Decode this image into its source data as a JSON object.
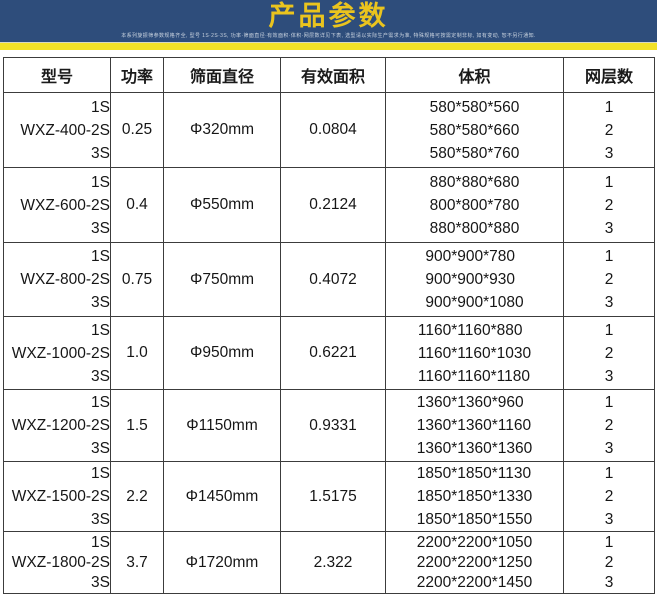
{
  "banner": {
    "title": "产品参数",
    "subtitle": "本系列旋振筛参数规格齐全, 型号 1S·2S·3S, 功率·筛面直径·有效面积·体积·网层数详见下表, 选型请以实际生产需求为准, 特殊规格可按需定制非标, 如有变动, 恕不另行通知.",
    "bg_color": "#2e4d7b",
    "title_color": "#eac41e",
    "stripe_color": "#f2e126"
  },
  "table": {
    "headers": [
      "型号",
      "功率",
      "筛面直径",
      "有效面积",
      "体积",
      "网层数"
    ],
    "rows": [
      {
        "model_lines": [
          "1S",
          "WXZ-400-2S",
          "3S"
        ],
        "power": "0.25",
        "diameter": "Φ320mm",
        "area": "0.0804",
        "volumes": [
          "580*580*560",
          "580*580*660",
          "580*580*760"
        ],
        "layers": [
          "1",
          "2",
          "3"
        ]
      },
      {
        "model_lines": [
          "1S",
          "WXZ-600-2S",
          "3S"
        ],
        "power": "0.4",
        "diameter": "Φ550mm",
        "area": "0.2124",
        "volumes": [
          "880*880*680",
          "800*800*780",
          "880*800*880"
        ],
        "layers": [
          "1",
          "2",
          "3"
        ]
      },
      {
        "model_lines": [
          "1S",
          "WXZ-800-2S",
          "3S"
        ],
        "power": "0.75",
        "diameter": "Φ750mm",
        "area": "0.4072",
        "volumes": [
          "900*900*780",
          "900*900*930",
          "900*900*1080"
        ],
        "layers": [
          "1",
          "2",
          "3"
        ]
      },
      {
        "model_lines": [
          "1S",
          "WXZ-1000-2S",
          "3S"
        ],
        "power": "1.0",
        "diameter": "Φ950mm",
        "area": "0.6221",
        "volumes": [
          "1160*1160*880",
          "1160*1160*1030",
          "1160*1160*1180"
        ],
        "layers": [
          "1",
          "2",
          "3"
        ]
      },
      {
        "model_lines": [
          "1S",
          "WXZ-1200-2S",
          "3S"
        ],
        "power": "1.5",
        "diameter": "Φ1150mm",
        "area": "0.9331",
        "volumes": [
          "1360*1360*960",
          "1360*1360*1160",
          "1360*1360*1360"
        ],
        "layers": [
          "1",
          "2",
          "3"
        ]
      },
      {
        "model_lines": [
          "1S",
          "WXZ-1500-2S",
          "3S"
        ],
        "power": "2.2",
        "diameter": "Φ1450mm",
        "area": "1.5175",
        "volumes": [
          "1850*1850*1130",
          "1850*1850*1330",
          "1850*1850*1550"
        ],
        "layers": [
          "1",
          "2",
          "3"
        ]
      },
      {
        "model_lines": [
          "1S",
          "WXZ-1800-2S",
          "3S"
        ],
        "power": "3.7",
        "diameter": "Φ1720mm",
        "area": "2.322",
        "volumes": [
          "2200*2200*1050",
          "2200*2200*1250",
          "2200*2200*1450"
        ],
        "layers": [
          "1",
          "2",
          "3"
        ]
      }
    ]
  }
}
